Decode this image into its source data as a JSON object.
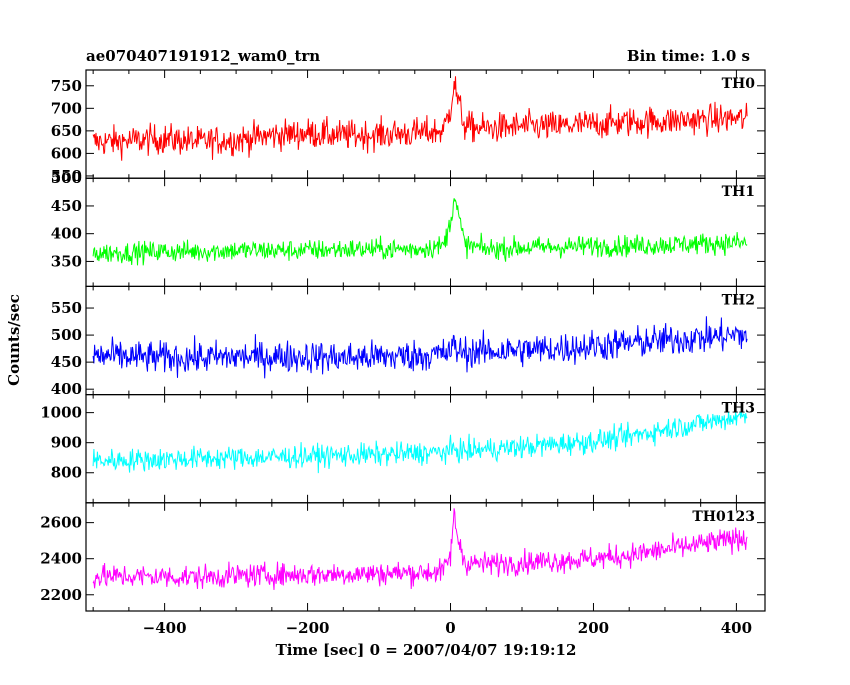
{
  "header": {
    "title": "ae070407191912_wam0_trn",
    "bin_time": "Bin time: 1.0 s"
  },
  "axes": {
    "ylabel": "Counts/sec",
    "xlabel": "Time [sec] 0 = 2007/04/07 19:19:12",
    "x_tick_labels": [
      "−400",
      "−200",
      "0",
      "200",
      "400"
    ]
  },
  "chart_data": {
    "type": "line",
    "title": "ae070407191912_wam0_trn",
    "xlabel": "Time [sec] 0 = 2007/04/07 19:19:12",
    "ylabel": "Counts/sec",
    "xlim": [
      -510,
      440
    ],
    "x_ticks": [
      -400,
      -200,
      0,
      200,
      400
    ],
    "bin_time_s": 1.0,
    "grid": false,
    "panels": [
      {
        "label": "TH0",
        "color": "#ff0000",
        "ylim": [
          545,
          785
        ],
        "y_ticks": [
          550,
          600,
          650,
          700,
          750
        ],
        "x": [
          -500,
          -450,
          -400,
          -350,
          -300,
          -250,
          -200,
          -150,
          -100,
          -50,
          -10,
          0,
          5,
          10,
          20,
          50,
          100,
          150,
          200,
          250,
          300,
          350,
          400,
          415
        ],
        "y": [
          625,
          628,
          632,
          626,
          630,
          640,
          645,
          640,
          642,
          645,
          650,
          700,
          760,
          720,
          660,
          655,
          660,
          660,
          665,
          670,
          672,
          675,
          678,
          675
        ],
        "noise": 28
      },
      {
        "label": "TH1",
        "color": "#00ff00",
        "ylim": [
          305,
          500
        ],
        "y_ticks": [
          350,
          400,
          450,
          500
        ],
        "x": [
          -500,
          -450,
          -400,
          -350,
          -300,
          -250,
          -200,
          -150,
          -100,
          -50,
          -10,
          0,
          5,
          10,
          20,
          50,
          100,
          150,
          200,
          250,
          300,
          350,
          400,
          415
        ],
        "y": [
          365,
          366,
          368,
          368,
          370,
          370,
          370,
          372,
          372,
          372,
          378,
          420,
          470,
          440,
          380,
          372,
          375,
          376,
          378,
          378,
          380,
          382,
          384,
          382
        ],
        "noise": 16
      },
      {
        "label": "TH2",
        "color": "#0000ff",
        "ylim": [
          390,
          590
        ],
        "y_ticks": [
          400,
          450,
          500,
          550
        ],
        "x": [
          -500,
          -450,
          -400,
          -350,
          -300,
          -250,
          -200,
          -150,
          -100,
          -50,
          -10,
          0,
          5,
          10,
          20,
          50,
          100,
          150,
          200,
          250,
          300,
          350,
          400,
          415
        ],
        "y": [
          462,
          460,
          458,
          458,
          460,
          460,
          460,
          458,
          460,
          462,
          465,
          470,
          480,
          472,
          468,
          470,
          472,
          475,
          480,
          485,
          490,
          495,
          500,
          500
        ],
        "noise": 25
      },
      {
        "label": "TH3",
        "color": "#00ffff",
        "ylim": [
          700,
          1060
        ],
        "y_ticks": [
          800,
          900,
          1000
        ],
        "x": [
          -500,
          -450,
          -400,
          -350,
          -300,
          -250,
          -200,
          -150,
          -100,
          -50,
          -10,
          0,
          5,
          10,
          20,
          50,
          100,
          150,
          200,
          250,
          300,
          350,
          400,
          415
        ],
        "y": [
          840,
          842,
          845,
          848,
          850,
          852,
          855,
          858,
          860,
          865,
          868,
          872,
          880,
          875,
          872,
          878,
          885,
          895,
          905,
          920,
          945,
          965,
          985,
          990
        ],
        "noise": 32
      },
      {
        "label": "TH0123",
        "color": "#ff00ff",
        "ylim": [
          2110,
          2710
        ],
        "y_ticks": [
          2200,
          2400,
          2600
        ],
        "x": [
          -500,
          -450,
          -400,
          -350,
          -300,
          -250,
          -200,
          -150,
          -100,
          -50,
          -10,
          0,
          5,
          10,
          20,
          50,
          100,
          150,
          200,
          250,
          300,
          350,
          400,
          415
        ],
        "y": [
          2300,
          2302,
          2300,
          2298,
          2305,
          2310,
          2312,
          2315,
          2318,
          2322,
          2330,
          2420,
          2640,
          2520,
          2380,
          2370,
          2380,
          2390,
          2400,
          2420,
          2450,
          2480,
          2510,
          2520
        ],
        "noise": 55
      }
    ]
  }
}
